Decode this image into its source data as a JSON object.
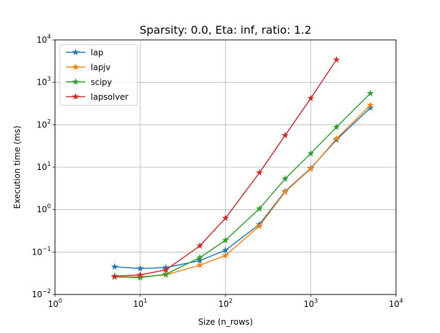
{
  "chart_data": {
    "type": "line",
    "title": "Sparsity: 0.0, Eta: inf, ratio: 1.2",
    "xlabel": "Size (n_rows)",
    "ylabel": "Execution time (ms)",
    "x_scale": "log",
    "y_scale": "log",
    "xlim": [
      1,
      10000
    ],
    "ylim": [
      0.01,
      10000
    ],
    "grid": true,
    "legend_position": "top-left",
    "x_ticks": [
      {
        "base": "10",
        "exp": "0",
        "value": 1
      },
      {
        "base": "10",
        "exp": "1",
        "value": 10
      },
      {
        "base": "10",
        "exp": "2",
        "value": 100
      },
      {
        "base": "10",
        "exp": "3",
        "value": 1000
      },
      {
        "base": "10",
        "exp": "4",
        "value": 10000
      }
    ],
    "y_ticks": [
      {
        "base": "10",
        "exp": "−2",
        "value": 0.01
      },
      {
        "base": "10",
        "exp": "−1",
        "value": 0.1
      },
      {
        "base": "10",
        "exp": "0",
        "value": 1
      },
      {
        "base": "10",
        "exp": "1",
        "value": 10
      },
      {
        "base": "10",
        "exp": "2",
        "value": 100
      },
      {
        "base": "10",
        "exp": "3",
        "value": 1000
      },
      {
        "base": "10",
        "exp": "4",
        "value": 10000
      }
    ],
    "series": [
      {
        "name": "lap",
        "color": "#1f77b4",
        "x": [
          5,
          10,
          20,
          50,
          100,
          250,
          500,
          1000,
          2000,
          5000
        ],
        "y": [
          0.045,
          0.041,
          0.043,
          0.063,
          0.11,
          0.45,
          2.7,
          9.5,
          44,
          250
        ]
      },
      {
        "name": "lapjv",
        "color": "#ff7f0e",
        "x": [
          5,
          10,
          20,
          50,
          100,
          250,
          500,
          1000,
          2000,
          5000
        ],
        "y": [
          0.026,
          0.026,
          0.029,
          0.049,
          0.083,
          0.41,
          2.6,
          9.2,
          47,
          290
        ]
      },
      {
        "name": "scipy",
        "color": "#2ca02c",
        "x": [
          5,
          10,
          20,
          50,
          100,
          250,
          500,
          1000,
          2000,
          5000
        ],
        "y": [
          0.026,
          0.025,
          0.03,
          0.074,
          0.19,
          1.05,
          5.3,
          21,
          88,
          550
        ]
      },
      {
        "name": "lapsolver",
        "color": "#d62728",
        "x": [
          5,
          10,
          20,
          50,
          100,
          250,
          500,
          1000,
          2000
        ],
        "y": [
          0.027,
          0.029,
          0.038,
          0.14,
          0.63,
          7.4,
          56,
          420,
          3400
        ]
      }
    ]
  }
}
